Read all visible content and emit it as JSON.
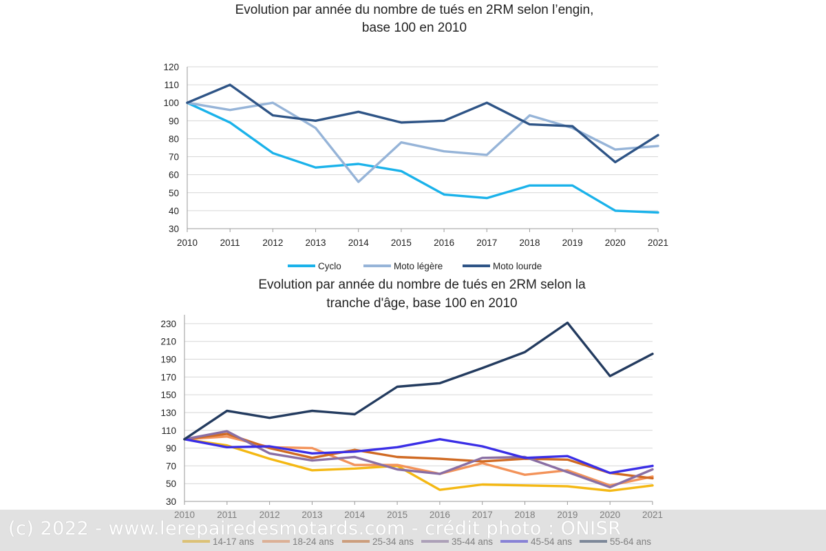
{
  "chart_data": [
    {
      "type": "line",
      "title": [
        "Evolution par année du nombre de tués en 2RM selon l’engin,",
        "base 100 en 2010"
      ],
      "x": [
        2010,
        2011,
        2012,
        2013,
        2014,
        2015,
        2016,
        2017,
        2018,
        2019,
        2020,
        2021
      ],
      "ylim": [
        30,
        120
      ],
      "yticks": [
        30,
        40,
        50,
        60,
        70,
        80,
        90,
        100,
        110,
        120
      ],
      "grid": true,
      "legend": "bottom",
      "series": [
        {
          "name": "Cyclo",
          "color": "#1ab2ea",
          "values": [
            100,
            89,
            72,
            64,
            66,
            62,
            49,
            47,
            54,
            54,
            40,
            39
          ]
        },
        {
          "name": "Moto légère",
          "color": "#96b4d8",
          "values": [
            100,
            96,
            100,
            86,
            56,
            78,
            73,
            71,
            93,
            86,
            74,
            76
          ]
        },
        {
          "name": "Moto lourde",
          "color": "#2e5486",
          "values": [
            100,
            110,
            93,
            90,
            95,
            89,
            90,
            100,
            88,
            87,
            67,
            82
          ]
        }
      ]
    },
    {
      "type": "line",
      "title": [
        "Evolution par année du nombre de tués en 2RM selon la",
        "tranche d'âge, base 100 en 2010"
      ],
      "x": [
        2010,
        2011,
        2012,
        2013,
        2014,
        2015,
        2016,
        2017,
        2018,
        2019,
        2020,
        2021
      ],
      "ylim": [
        30,
        240
      ],
      "yticks": [
        30,
        50,
        70,
        90,
        110,
        130,
        150,
        170,
        190,
        210,
        230
      ],
      "grid": true,
      "legend": "bottom",
      "series": [
        {
          "name": "14-17 ans",
          "color": "#f4b813",
          "values": [
            100,
            93,
            78,
            65,
            67,
            70,
            43,
            49,
            48,
            47,
            42,
            48
          ]
        },
        {
          "name": "18-24 ans",
          "color": "#f3935a",
          "values": [
            100,
            103,
            91,
            90,
            71,
            71,
            61,
            73,
            60,
            65,
            48,
            58
          ]
        },
        {
          "name": "25-34 ans",
          "color": "#d06a23",
          "values": [
            100,
            106,
            90,
            79,
            88,
            80,
            78,
            75,
            78,
            77,
            62,
            56
          ]
        },
        {
          "name": "35-44 ans",
          "color": "#8a6fa4",
          "values": [
            100,
            109,
            84,
            76,
            80,
            66,
            61,
            79,
            80,
            63,
            46,
            66
          ]
        },
        {
          "name": "45-54 ans",
          "color": "#3a2ee6",
          "values": [
            100,
            91,
            92,
            84,
            86,
            91,
            100,
            92,
            79,
            81,
            62,
            70
          ]
        },
        {
          "name": "55-64 ans",
          "color": "#233b5f",
          "values": [
            100,
            132,
            124,
            132,
            128,
            159,
            163,
            180,
            198,
            231,
            171,
            196
          ]
        }
      ]
    }
  ],
  "watermark": "(c) 2022 - www.lerepairedesmotards.com - crédit photo : ONISR"
}
